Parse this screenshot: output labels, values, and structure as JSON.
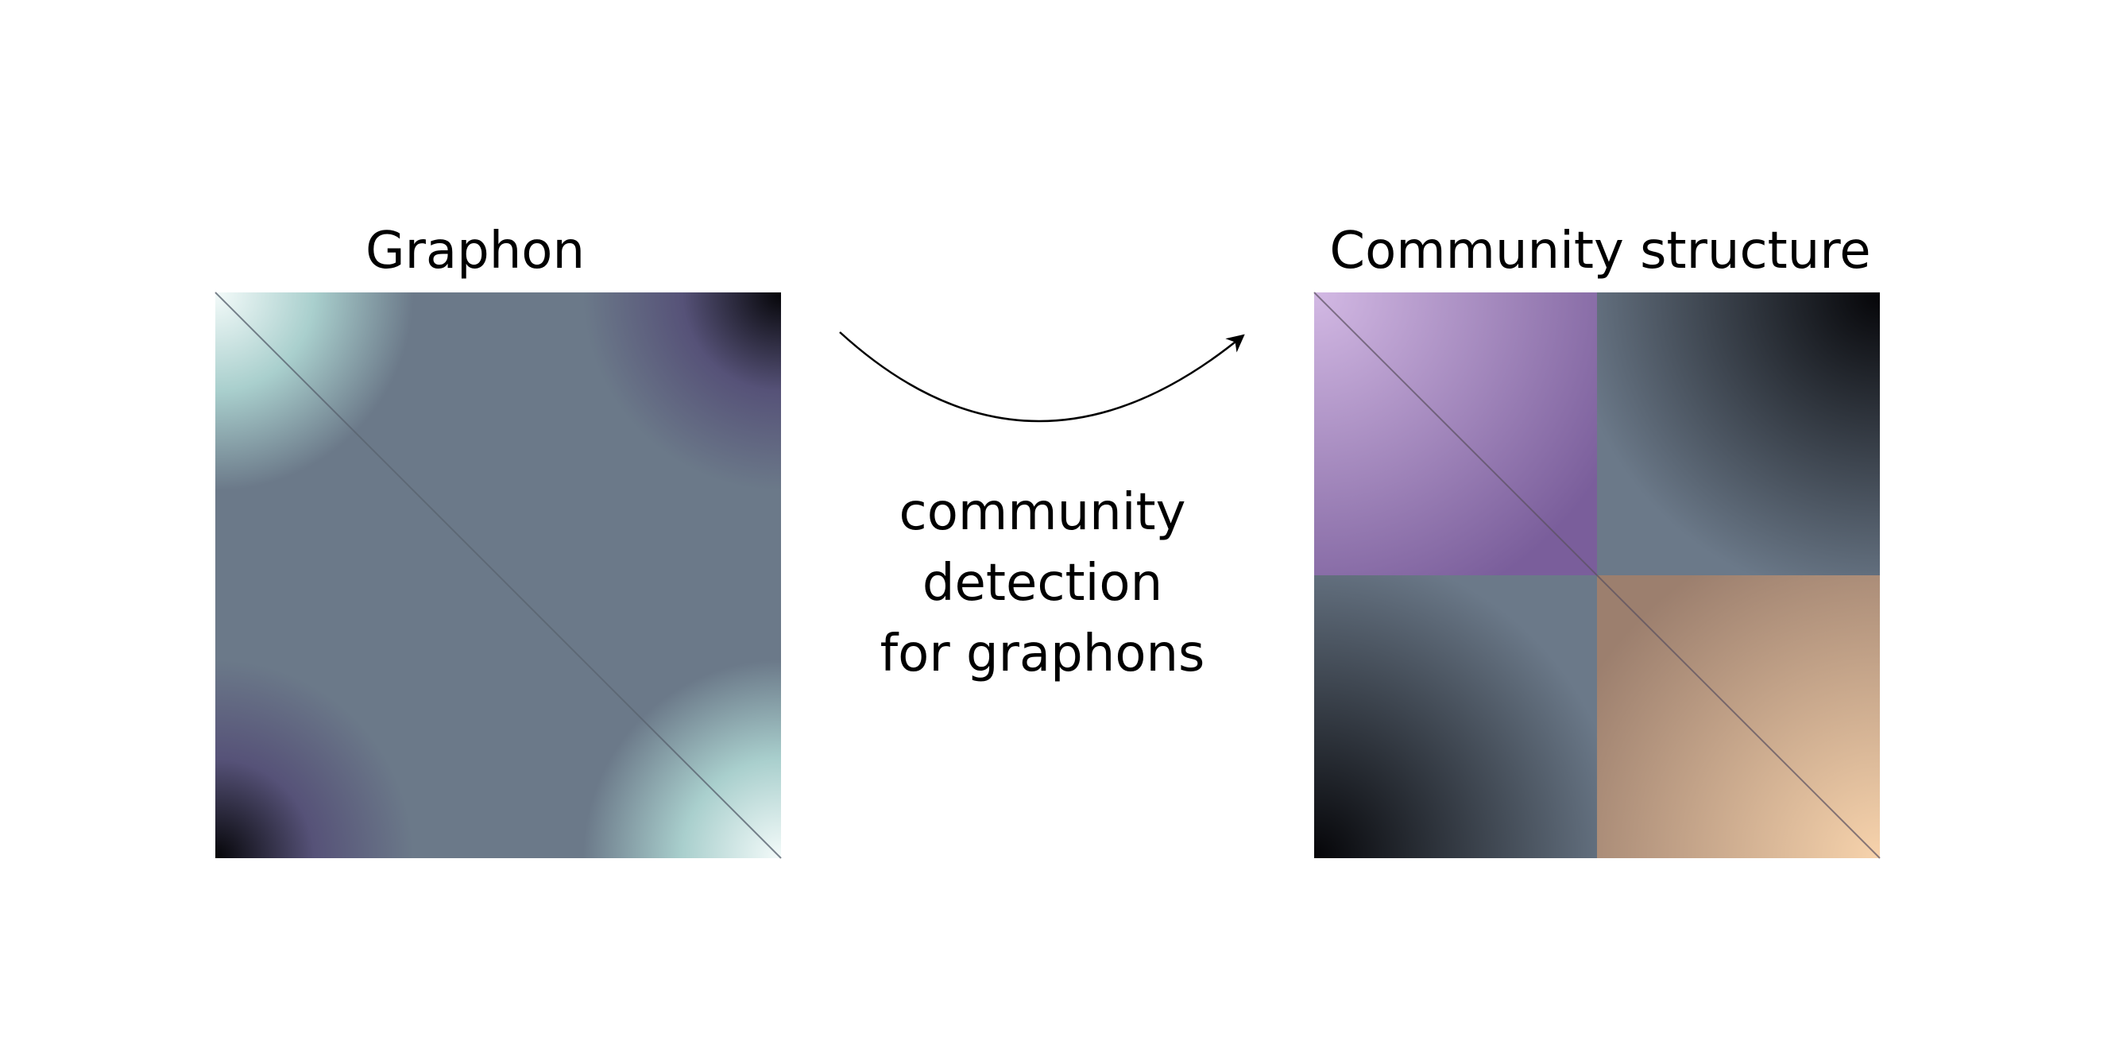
{
  "left_panel": {
    "title": "Graphon",
    "colors": {
      "light": "#f4fbfa",
      "teal": "#a9cfcd",
      "mid": "#6b7989",
      "purple": "#565278",
      "dark": "#050508"
    }
  },
  "right_panel": {
    "title": "Community structure",
    "blocks": {
      "top_left": [
        "#d3b9e4",
        "#7a5e9b"
      ],
      "top_right": [
        "#6b7989",
        "#050508"
      ],
      "bottom_left": [
        "#6b7989",
        "#050508"
      ],
      "bottom_right": [
        "#9c7f6e",
        "#f7d3ac"
      ]
    }
  },
  "arrow": {
    "caption_lines": [
      "community",
      "detection",
      "for graphons"
    ]
  }
}
